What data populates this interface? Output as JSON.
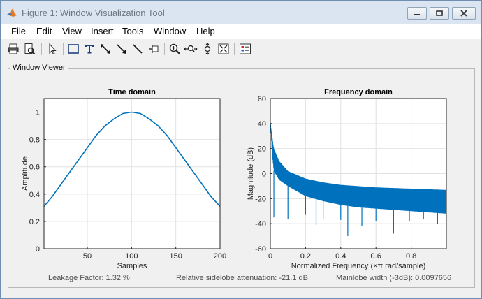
{
  "window": {
    "title": "Figure 1: Window Visualization Tool",
    "icon": "matlab-icon",
    "controls": [
      "minimize-icon",
      "restore-icon",
      "close-icon"
    ]
  },
  "menu": {
    "items": [
      {
        "label": "File"
      },
      {
        "label": "Edit"
      },
      {
        "label": "View"
      },
      {
        "label": "Insert"
      },
      {
        "label": "Tools"
      },
      {
        "label": "Window"
      },
      {
        "label": "Help"
      }
    ]
  },
  "toolbar": {
    "icons": [
      "print-icon",
      "print-preview-icon",
      "select-arrow-icon",
      "rectangle-icon",
      "text-icon",
      "double-arrow-icon",
      "arrow-icon",
      "line-icon",
      "pin-icon",
      "zoom-in-icon",
      "pan-icon",
      "data-cursor-icon",
      "fit-icon",
      "legend-icon"
    ]
  },
  "panel": {
    "title": "Window Viewer"
  },
  "status": {
    "leakage": "Leakage Factor: 1.32 %",
    "sidelobe": "Relative sidelobe attenuation: -21.1 dB",
    "mainlobe": "Mainlobe width (-3dB): 0.0097656"
  },
  "colors": {
    "line": "#0072bd",
    "title_bar": "#dbe5f1",
    "background": "#f0f0f0"
  },
  "chart_data": [
    {
      "type": "line",
      "title": "Time domain",
      "xlabel": "Samples",
      "ylabel": "Amplitude",
      "xlim": [
        1,
        200
      ],
      "ylim": [
        0,
        1.1
      ],
      "xticks": [
        50,
        100,
        150,
        200
      ],
      "yticks": [
        0,
        0.2,
        0.4,
        0.6,
        0.8,
        1
      ],
      "grid": true,
      "series": [
        {
          "x": [
            1,
            10,
            20,
            30,
            40,
            50,
            60,
            70,
            80,
            90,
            100,
            110,
            120,
            130,
            140,
            150,
            160,
            170,
            180,
            190,
            200
          ],
          "values": [
            0.31,
            0.38,
            0.47,
            0.56,
            0.65,
            0.74,
            0.83,
            0.9,
            0.95,
            0.99,
            1.0,
            0.99,
            0.95,
            0.9,
            0.83,
            0.74,
            0.65,
            0.56,
            0.47,
            0.38,
            0.31
          ]
        }
      ]
    },
    {
      "type": "line",
      "title": "Frequency domain",
      "xlabel": "Normalized Frequency  (×π rad/sample)",
      "ylabel": "Magnitude (dB)",
      "xlim": [
        0,
        1
      ],
      "ylim": [
        -60,
        60
      ],
      "xticks": [
        0,
        0.2,
        0.4,
        0.6,
        0.8
      ],
      "yticks": [
        -60,
        -40,
        -20,
        0,
        20,
        40,
        60
      ],
      "grid": true,
      "series": [
        {
          "envelope_x": [
            0,
            0.01,
            0.02,
            0.05,
            0.1,
            0.2,
            0.3,
            0.4,
            0.5,
            0.6,
            0.7,
            0.8,
            0.9,
            1.0
          ],
          "envelope_top": [
            42,
            30,
            20,
            10,
            2,
            -4,
            -7,
            -9,
            -10,
            -11,
            -11.5,
            -12,
            -12.5,
            -13
          ],
          "envelope_bottom": [
            42,
            15,
            2,
            -5,
            -10,
            -18,
            -22,
            -25,
            -27,
            -28,
            -29,
            -30,
            -31,
            -32
          ],
          "deep_nulls_x": [
            0.02,
            0.1,
            0.2,
            0.26,
            0.3,
            0.4,
            0.44,
            0.52,
            0.6,
            0.7,
            0.79,
            0.87,
            0.95
          ],
          "deep_nulls_y": [
            -35,
            -36,
            -33,
            -41,
            -36,
            -37,
            -50,
            -42,
            -38,
            -48,
            -38,
            -36,
            -40
          ]
        }
      ]
    }
  ]
}
